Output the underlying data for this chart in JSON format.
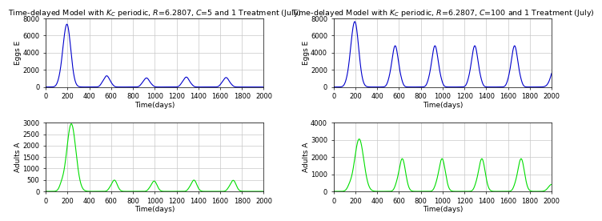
{
  "title_left": "Time-delayed Model with $K_C$ periodic, $R$=6.2807, $C$=5 and 1 Treatment (July)",
  "title_right": "Time-delayed Model with $K_C$ periodic, $R$=6.2807, $C$=100 and 1 Treatment (July)",
  "xlabel": "Time(days)",
  "ylabel_eggs": "Eggs E",
  "ylabel_adults": "Adults A",
  "xlim": [
    0,
    2000
  ],
  "ylim_eggs_c5": [
    0,
    8000
  ],
  "ylim_eggs_c100": [
    0,
    8000
  ],
  "ylim_adults_c5": [
    0,
    3000
  ],
  "ylim_adults_c100": [
    0,
    4000
  ],
  "yticks_eggs": [
    0,
    2000,
    4000,
    6000,
    8000
  ],
  "yticks_adults_c5": [
    0,
    500,
    1000,
    1500,
    2000,
    2500,
    3000
  ],
  "yticks_adults_c100": [
    0,
    1000,
    2000,
    3000,
    4000
  ],
  "xticks": [
    0,
    200,
    400,
    600,
    800,
    1000,
    1200,
    1400,
    1600,
    1800,
    2000
  ],
  "line_color_blue": "#0000cc",
  "line_color_green": "#00dd00",
  "bg_color": "#ffffff",
  "grid_color": "#c8c8c8",
  "title_fontsize": 6.8,
  "label_fontsize": 6.5,
  "tick_fontsize": 6.0
}
